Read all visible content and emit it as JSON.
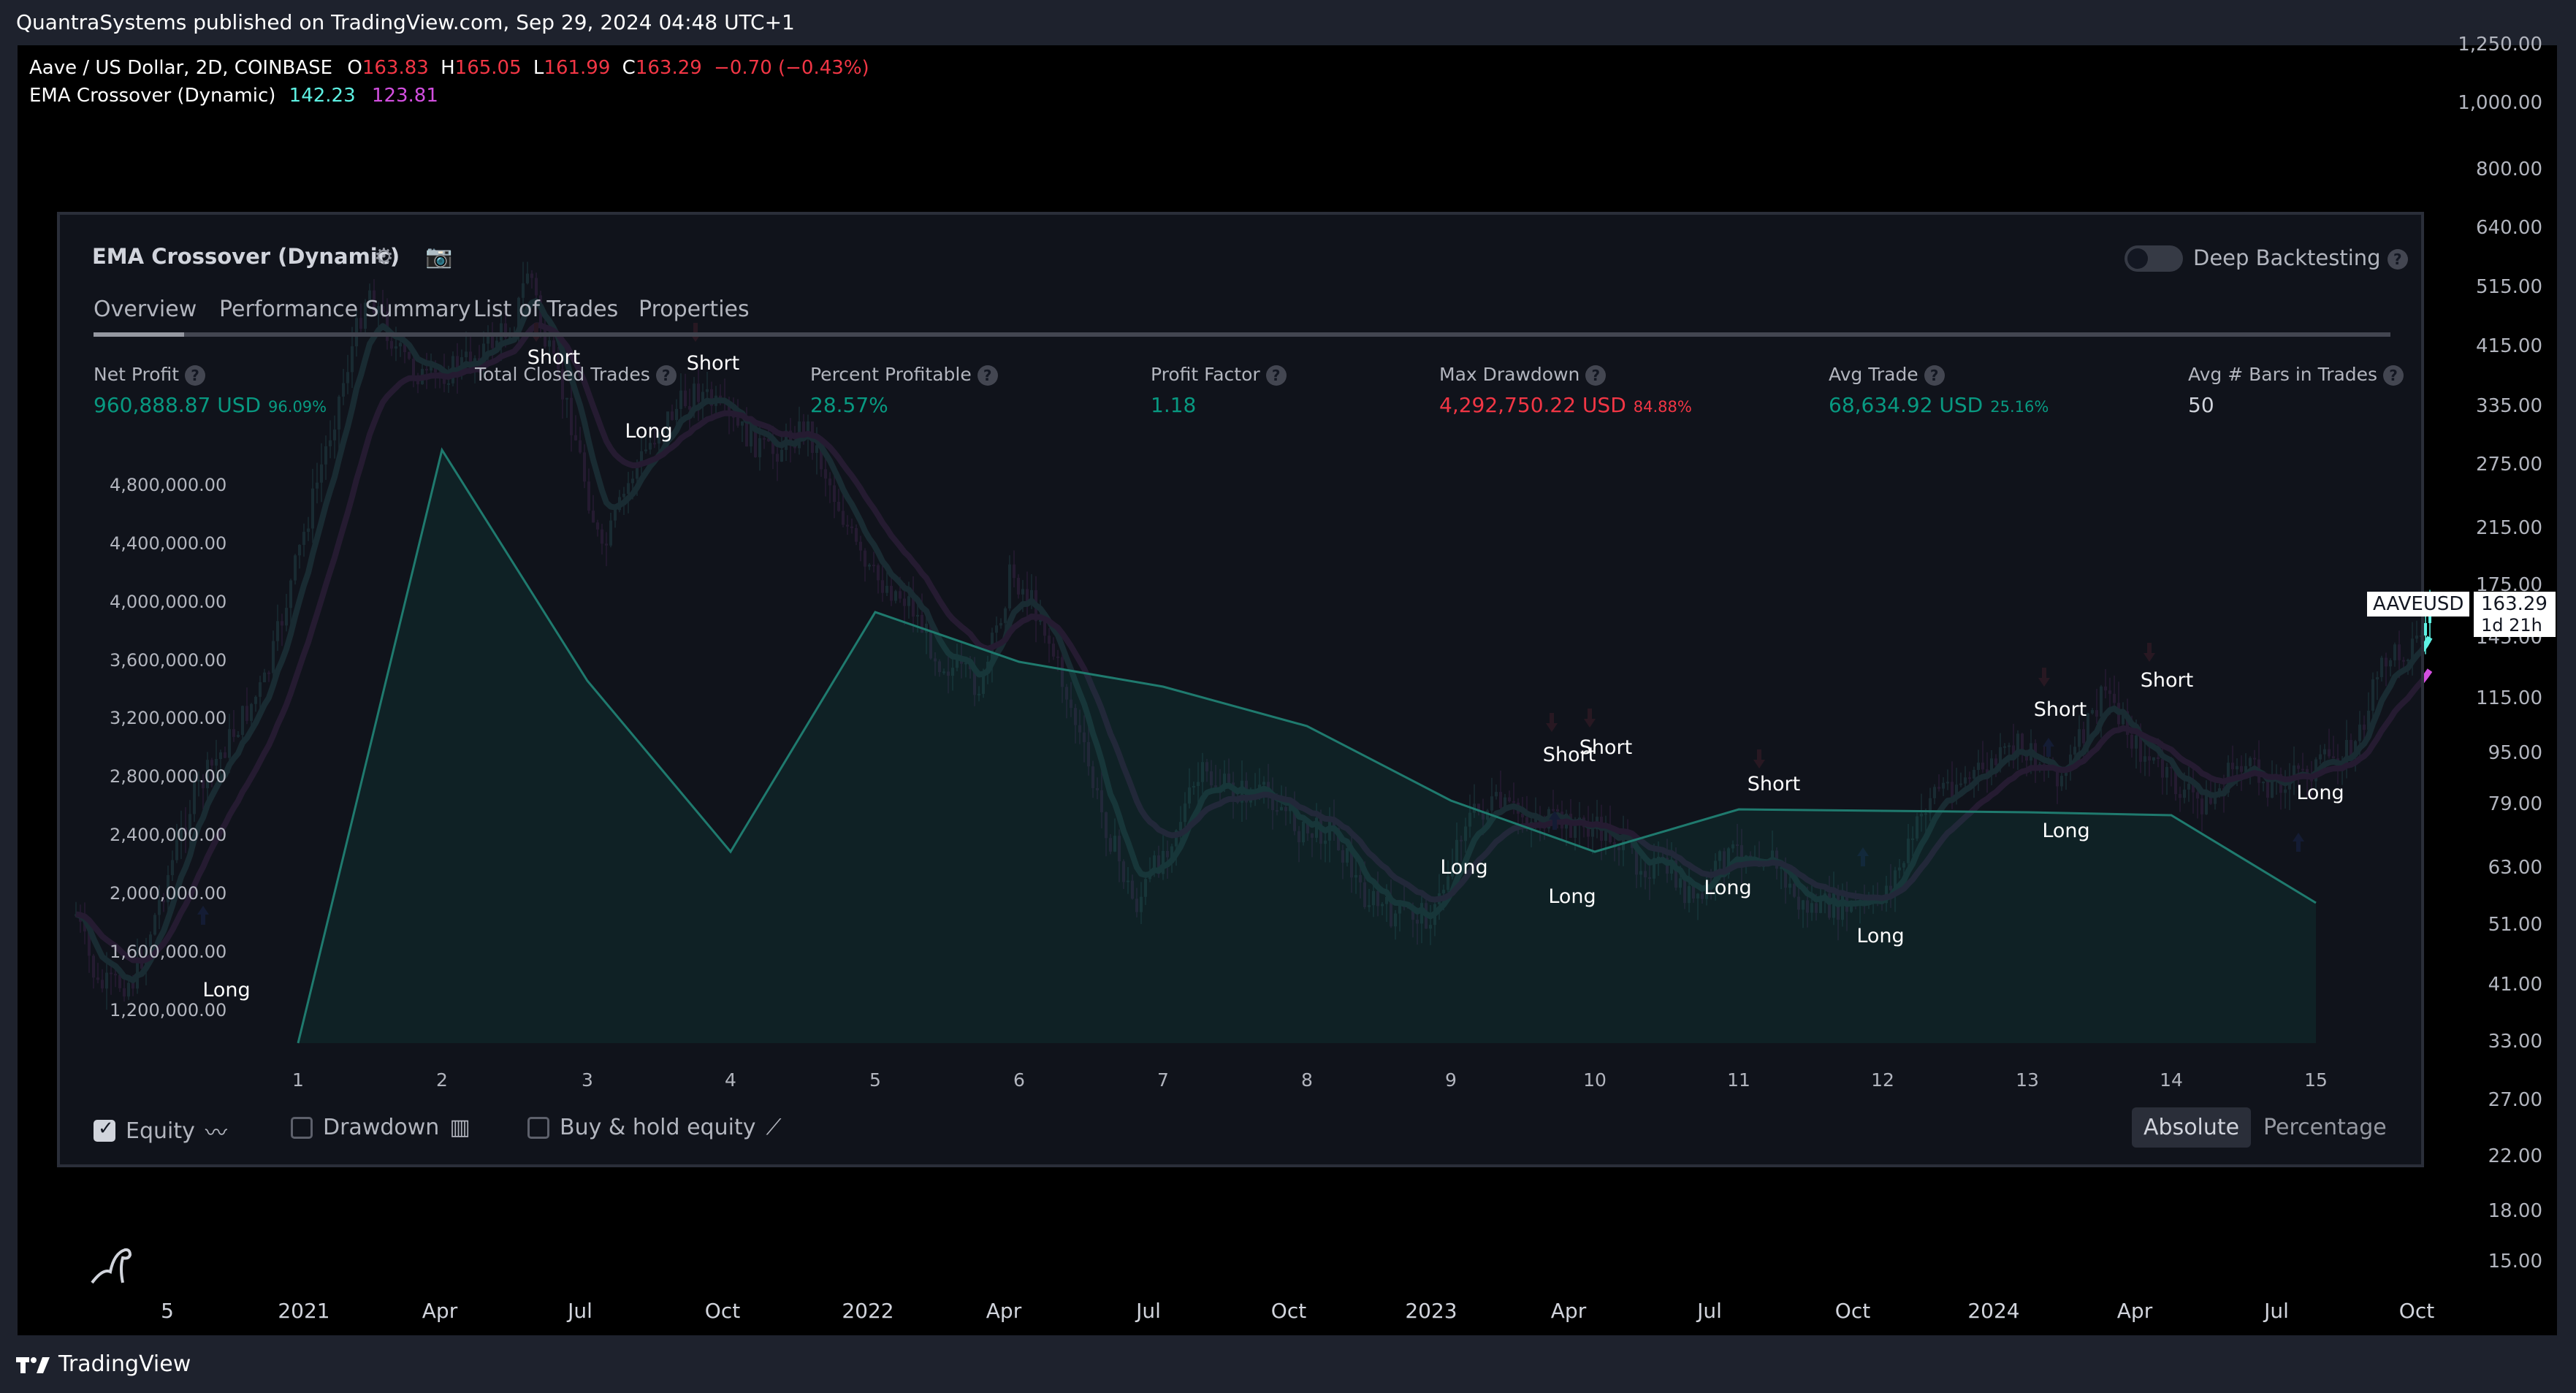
{
  "header": {
    "published": "QuantraSystems published on TradingView.com, Sep 29, 2024 04:48 UTC+1"
  },
  "legend": {
    "symbol": "Aave / US Dollar, 2D, COINBASE",
    "o_label": "O",
    "o_value": "163.83",
    "h_label": "H",
    "h_value": "165.05",
    "l_label": "L",
    "l_value": "161.99",
    "c_label": "C",
    "c_value": "163.29",
    "change": "−0.70 (−0.43%)",
    "indicator_name": "EMA Crossover (Dynamic)",
    "ema_fast": "142.23",
    "ema_slow": "123.81"
  },
  "colors": {
    "ema_fast": "#5ef2e4",
    "ema_slow": "#d34fe0",
    "up": "#5ef2e4",
    "down": "#d34fe0",
    "profit": "#089981",
    "loss": "#f23645"
  },
  "price_scale": [
    "1,250.00",
    "1,000.00",
    "800.00",
    "640.00",
    "515.00",
    "415.00",
    "335.00",
    "275.00",
    "215.00",
    "175.00",
    "145.00",
    "115.00",
    "95.00",
    "79.00",
    "63.00",
    "51.00",
    "41.00",
    "33.00",
    "27.00",
    "22.00",
    "18.00",
    "15.00"
  ],
  "price_tag": {
    "symbol": "AAVEUSD",
    "price": "163.29",
    "countdown": "1d 21h"
  },
  "time_axis": [
    "5",
    "2021",
    "Apr",
    "Jul",
    "Oct",
    "2022",
    "Apr",
    "Jul",
    "Oct",
    "2023",
    "Apr",
    "Jul",
    "Oct",
    "2024",
    "Apr",
    "Jul",
    "Oct"
  ],
  "strategy_panel": {
    "title": "EMA Crossover (Dynamic)",
    "settings_icon": "gear-icon",
    "snapshot_icon": "camera-icon",
    "tabs": [
      "Overview",
      "Performance Summary",
      "List of Trades",
      "Properties"
    ],
    "active_tab": "Overview",
    "deep_backtesting": "Deep Backtesting",
    "metrics": [
      {
        "label": "Net Profit",
        "value": "960,888.87 USD",
        "pct": "96.09%",
        "tone": "teal"
      },
      {
        "label": "Total Closed Trades",
        "value": "",
        "pct": "",
        "tone": "wh"
      },
      {
        "label": "Percent Profitable",
        "value": "28.57%",
        "pct": "",
        "tone": "teal"
      },
      {
        "label": "Profit Factor",
        "value": "1.18",
        "pct": "",
        "tone": "teal"
      },
      {
        "label": "Max Drawdown",
        "value": "4,292,750.22 USD",
        "pct": "84.88%",
        "tone": "redv"
      },
      {
        "label": "Avg Trade",
        "value": "68,634.92 USD",
        "pct": "25.16%",
        "tone": "teal"
      },
      {
        "label": "Avg # Bars in Trades",
        "value": "50",
        "pct": "",
        "tone": "wh"
      }
    ],
    "equity_scale": [
      "4,800,000.00",
      "4,400,000.00",
      "4,000,000.00",
      "3,600,000.00",
      "3,200,000.00",
      "2,800,000.00",
      "2,400,000.00",
      "2,000,000.00",
      "1,600,000.00",
      "1,200,000.00"
    ],
    "trade_numbers": [
      "1",
      "2",
      "3",
      "4",
      "5",
      "6",
      "7",
      "8",
      "9",
      "10",
      "11",
      "12",
      "13",
      "14",
      "15"
    ],
    "checkboxes": [
      {
        "label": "Equity",
        "checked": true
      },
      {
        "label": "Drawdown",
        "checked": false
      },
      {
        "label": "Buy & hold equity",
        "checked": false
      }
    ],
    "modes": [
      "Absolute",
      "Percentage"
    ],
    "active_mode": "Absolute"
  },
  "signals": {
    "long": "Long",
    "short": "Short"
  },
  "footer": {
    "brand": "TradingView"
  }
}
